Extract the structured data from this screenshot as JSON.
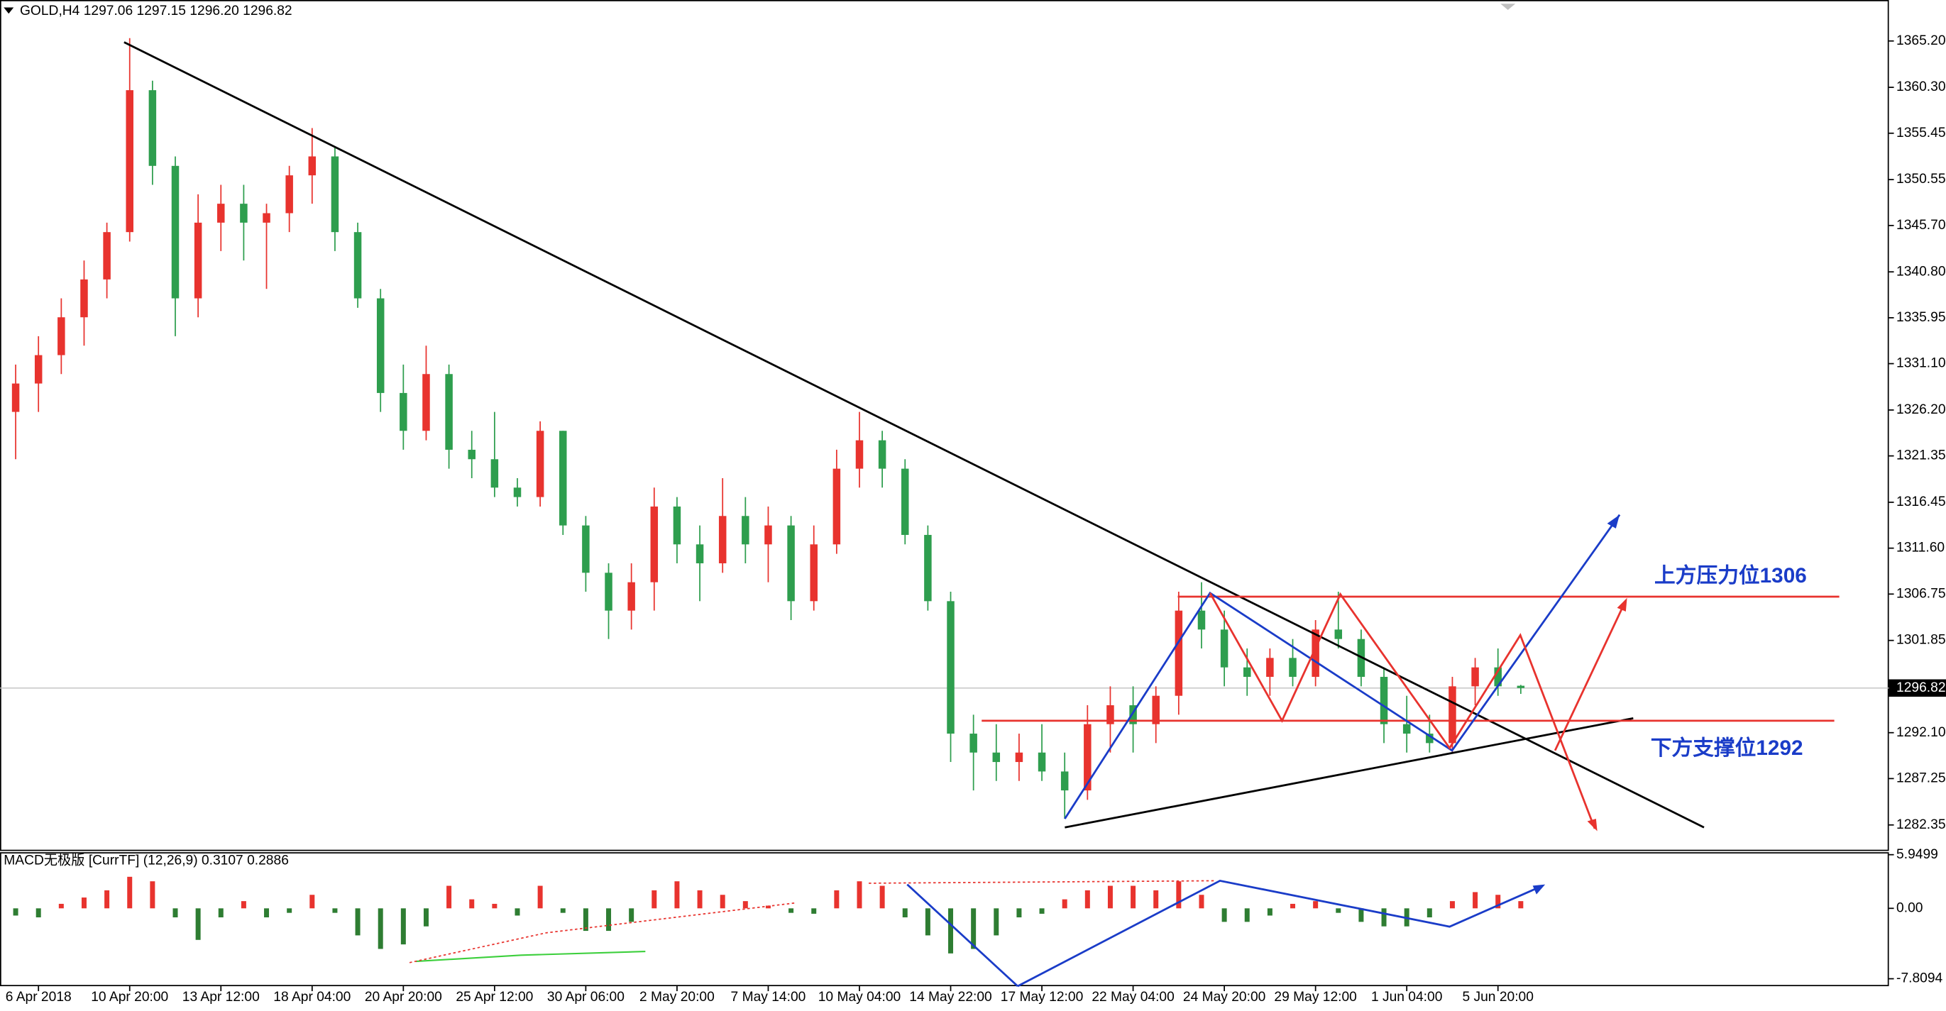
{
  "chart_data": [
    {
      "type": "candlestick",
      "title": "GOLD,H4  1297.06 1297.15 1296.20 1296.82",
      "categories": [
        null,
        "6 Apr 2018",
        null,
        null,
        null,
        "10 Apr 20:00",
        null,
        null,
        null,
        "13 Apr 12:00",
        null,
        null,
        null,
        "18 Apr 04:00",
        null,
        null,
        null,
        "20 Apr 20:00",
        null,
        null,
        null,
        "25 Apr 12:00",
        null,
        null,
        null,
        "30 Apr 06:00",
        null,
        null,
        null,
        "2 May 20:00",
        null,
        null,
        null,
        "7 May 14:00",
        null,
        null,
        null,
        "10 May 04:00",
        null,
        null,
        null,
        "14 May 22:00",
        null,
        null,
        null,
        "17 May 12:00",
        null,
        null,
        null,
        "22 May 04:00",
        null,
        null,
        null,
        "24 May 20:00",
        null,
        null,
        null,
        "29 May 12:00",
        null,
        null,
        null,
        "1 Jun 04:00",
        null,
        null,
        null,
        "5 Jun 20:00",
        null
      ],
      "open": [
        1326,
        1329,
        1332,
        1336,
        1340,
        1345,
        1360,
        1352,
        1338,
        1346,
        1348,
        1346,
        1347,
        1351,
        1353,
        1345,
        1338,
        1328,
        1324,
        1330,
        1322,
        1321,
        1318,
        1317,
        1324,
        1314,
        1309,
        1305,
        1308,
        1316,
        1312,
        1310,
        1315,
        1312,
        1314,
        1306,
        1312,
        1320,
        1323,
        1320,
        1313,
        1306,
        1292,
        1290,
        1289,
        1290,
        1288,
        1286,
        1293,
        1295,
        1293,
        1296,
        1305,
        1303,
        1299,
        1298,
        1300,
        1298,
        1303,
        1302,
        1298,
        1293,
        1292,
        1291,
        1297,
        1299,
        1297.06
      ],
      "high": [
        1331,
        1334,
        1338,
        1342,
        1346,
        1365.5,
        1361,
        1353,
        1349,
        1350,
        1350,
        1348,
        1352,
        1356,
        1354,
        1346,
        1339,
        1331,
        1333,
        1331,
        1324,
        1326,
        1319,
        1325,
        1324,
        1315,
        1310,
        1310,
        1318,
        1317,
        1314,
        1319,
        1317,
        1316,
        1315,
        1314,
        1322,
        1326,
        1324,
        1321,
        1314,
        1307,
        1294,
        1293,
        1292,
        1293,
        1290,
        1295,
        1297,
        1297,
        1297,
        1307,
        1308,
        1305,
        1301,
        1301,
        1302,
        1304,
        1307,
        1303,
        1299,
        1296,
        1294,
        1298,
        1300,
        1301,
        1297.15
      ],
      "low": [
        1321,
        1326,
        1330,
        1333,
        1338,
        1344,
        1350,
        1334,
        1336,
        1343,
        1342,
        1339,
        1345,
        1348,
        1343,
        1337,
        1326,
        1322,
        1323,
        1320,
        1319,
        1317,
        1316,
        1316,
        1313,
        1307,
        1302,
        1303,
        1305,
        1310,
        1306,
        1309,
        1310,
        1308,
        1304,
        1305,
        1311,
        1318,
        1318,
        1312,
        1305,
        1289,
        1286,
        1287,
        1287,
        1287,
        1283,
        1285,
        1290,
        1290,
        1291,
        1294,
        1301,
        1297,
        1296,
        1296,
        1297,
        1297,
        1301,
        1297,
        1291,
        1290,
        1290,
        1290,
        1295,
        1296,
        1296.2
      ],
      "close": [
        1329,
        1332,
        1336,
        1340,
        1345,
        1360,
        1352,
        1338,
        1346,
        1348,
        1346,
        1347,
        1351,
        1353,
        1345,
        1338,
        1328,
        1324,
        1330,
        1322,
        1321,
        1318,
        1317,
        1324,
        1314,
        1309,
        1305,
        1308,
        1316,
        1312,
        1310,
        1315,
        1312,
        1314,
        1306,
        1312,
        1320,
        1323,
        1320,
        1313,
        1306,
        1292,
        1290,
        1289,
        1290,
        1288,
        1286,
        1293,
        1295,
        1293,
        1296,
        1305,
        1303,
        1299,
        1298,
        1300,
        1298,
        1303,
        1302,
        1298,
        1293,
        1292,
        1291,
        1297,
        1299,
        1297,
        1296.82
      ],
      "up_color": "#e8332e",
      "down_color": "#2e9e4e",
      "ylim": [
        1279.73,
        1369.53
      ],
      "yticks": [
        {
          "value": 1365.2,
          "label": "1365.20"
        },
        {
          "value": 1360.3,
          "label": "1360.30"
        },
        1355.45,
        1350.55,
        {
          "value": 1345.7,
          "label": "1345.70"
        },
        {
          "value": 1340.8,
          "label": "1340.80"
        },
        1335.95,
        {
          "value": 1331.1,
          "label": "1331.10"
        },
        {
          "value": 1326.2,
          "label": "1326.20"
        },
        1321.35,
        1316.45,
        {
          "value": 1311.6,
          "label": "1311.60"
        },
        1306.75,
        1301.85,
        {
          "value": 1292.1,
          "label": "1292.10"
        },
        1287.25,
        1282.35
      ],
      "annotations": [
        "上方压力位1306",
        "下方支撑位1292"
      ]
    },
    {
      "type": "bar",
      "title": "MACD无极版 [CurrTF] (12,26,9) 0.3107 0.2886",
      "values": [
        -0.8,
        -1,
        0.5,
        1.2,
        2,
        3.5,
        3,
        -1,
        -3.5,
        -1,
        0.8,
        -1,
        -0.5,
        1.5,
        -0.5,
        -3,
        -4.5,
        -4,
        -2,
        2.5,
        1,
        0.5,
        -0.8,
        2.5,
        -0.5,
        -2.5,
        -2.5,
        -1.5,
        2,
        3,
        2,
        1.5,
        0.8,
        0.3,
        -0.5,
        -0.6,
        2,
        3,
        2.5,
        -1,
        -3,
        -5,
        -4.5,
        -3,
        -1,
        -0.6,
        1,
        2,
        2.5,
        2.5,
        2,
        3,
        1.5,
        -1.5,
        -1.5,
        -0.8,
        0.5,
        0.8,
        -0.5,
        -1.5,
        -2,
        -2,
        -1,
        0.8,
        1.8,
        1.5,
        0.8
      ],
      "pos_color": "#e8332e",
      "neg_color": "#2e7d32",
      "ylim": [
        -7.8094,
        5.9499
      ],
      "yticks": [
        5.9499,
        {
          "value": 0,
          "label": "0.00"
        },
        -7.8094
      ]
    }
  ]
}
